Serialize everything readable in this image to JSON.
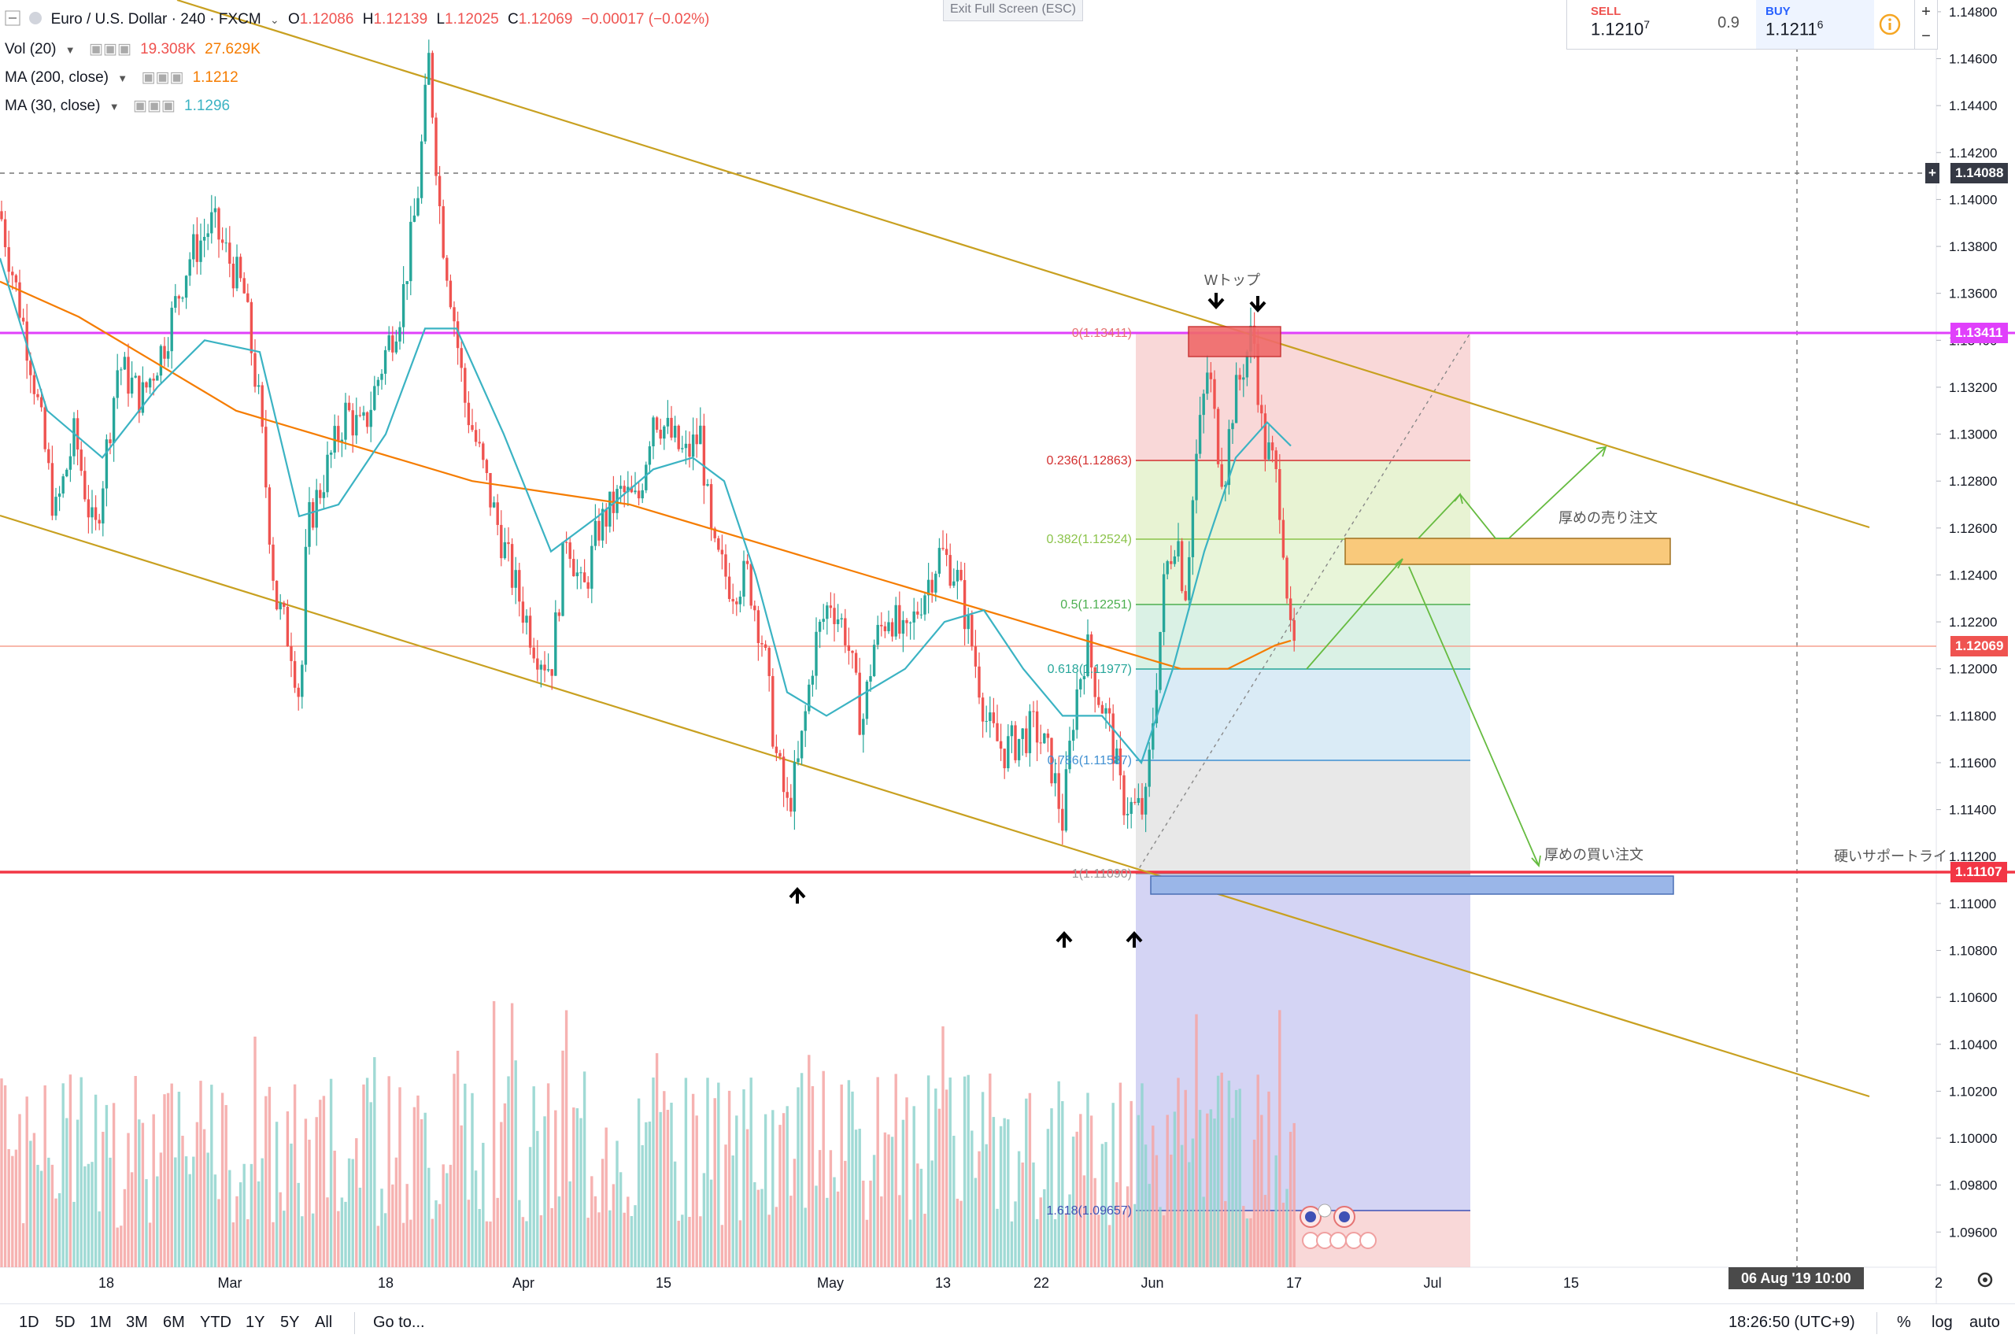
{
  "header": {
    "symbol": "Euro / U.S. Dollar · 240 · FXCM",
    "o_label": "O",
    "o": "1.12086",
    "h_label": "H",
    "h": "1.12139",
    "l_label": "L",
    "l": "1.12025",
    "c_label": "C",
    "c": "1.12069",
    "change": "−0.00017 (−0.02%)",
    "indicators": [
      {
        "name": "Vol (20)",
        "values": [
          "19.308K",
          "27.629K"
        ]
      },
      {
        "name": "MA (200, close)",
        "values": [
          "1.1212"
        ]
      },
      {
        "name": "MA (30, close)",
        "values": [
          "1.1296"
        ]
      }
    ]
  },
  "exit_fullscreen": "Exit Full Screen (ESC)",
  "trade": {
    "sell_label": "SELL",
    "sell_price": "1.1210",
    "sell_pip": "7",
    "spread": "0.9",
    "buy_label": "BUY",
    "buy_price": "1.1211",
    "buy_pip": "6",
    "plus": "+",
    "minus": "−"
  },
  "price_tags": {
    "crosshair": "1.14088",
    "resistance": "1.13411",
    "last": "1.12069",
    "support": "1.11107"
  },
  "annotations": {
    "double_top": "Wトップ",
    "sell_orders": "厚めの売り注文",
    "buy_orders": "厚めの買い注文",
    "support_line": "硬いサポートライ"
  },
  "bottom": {
    "timeframes": [
      "1D",
      "5D",
      "1M",
      "3M",
      "6M",
      "YTD",
      "1Y",
      "5Y",
      "All"
    ],
    "goto": "Go to...",
    "clock": "18:26:50 (UTC+9)",
    "pct": "%",
    "log": "log",
    "auto": "auto"
  },
  "date_badge": "06 Aug '19   10:00",
  "colors": {
    "up": "#26a69a",
    "down": "#ef5350",
    "ma30": "#3bb3c3",
    "ma200": "#f57c00",
    "channel": "#c8a020",
    "resistance": "#e040fb",
    "support": "#f23645",
    "arrow_green": "#66bb40"
  },
  "chart_data": {
    "type": "candlestick",
    "symbol": "EUR/USD",
    "timeframe": "240",
    "ylim": [
      1.0945,
      1.1485
    ],
    "y_ticks": [
      1.148,
      1.146,
      1.144,
      1.142,
      1.14,
      1.138,
      1.136,
      1.134,
      1.132,
      1.13,
      1.128,
      1.126,
      1.124,
      1.122,
      1.12,
      1.118,
      1.116,
      1.114,
      1.112,
      1.11,
      1.108,
      1.106,
      1.104,
      1.102,
      1.1,
      1.098,
      1.096
    ],
    "x_ticks": [
      "18",
      "Mar",
      "18",
      "Apr",
      "15",
      "May",
      "13",
      "22",
      "Jun",
      "17",
      "Jul",
      "15",
      "2"
    ],
    "fib": [
      {
        "ratio": "0",
        "label": "0(1.13411)",
        "value": 1.13411
      },
      {
        "ratio": "0.236",
        "label": "0.236(1.12863)",
        "value": 1.12863
      },
      {
        "ratio": "0.382",
        "label": "0.382(1.12524)",
        "value": 1.12524
      },
      {
        "ratio": "0.5",
        "label": "0.5(1.12251)",
        "value": 1.12251
      },
      {
        "ratio": "0.618",
        "label": "0.618(1.11977)",
        "value": 1.11977
      },
      {
        "ratio": "0.786",
        "label": "0.786(1.11587)",
        "value": 1.11587
      },
      {
        "ratio": "1",
        "label": "1(1.11090)",
        "value": 1.1109
      },
      {
        "ratio": "1.618",
        "label": "1.618(1.09657)",
        "value": 1.09657
      }
    ],
    "price_path": [
      [
        0,
        1.1395
      ],
      [
        40,
        1.133
      ],
      [
        70,
        1.1265
      ],
      [
        95,
        1.13
      ],
      [
        120,
        1.1255
      ],
      [
        150,
        1.133
      ],
      [
        180,
        1.1315
      ],
      [
        210,
        1.134
      ],
      [
        240,
        1.1375
      ],
      [
        270,
        1.139
      ],
      [
        290,
        1.1375
      ],
      [
        310,
        1.136
      ],
      [
        330,
        1.131
      ],
      [
        350,
        1.123
      ],
      [
        370,
        1.121
      ],
      [
        382,
        1.1185
      ],
      [
        390,
        1.126
      ],
      [
        410,
        1.128
      ],
      [
        440,
        1.131
      ],
      [
        460,
        1.13
      ],
      [
        490,
        1.1335
      ],
      [
        510,
        1.1355
      ],
      [
        530,
        1.14
      ],
      [
        545,
        1.146
      ],
      [
        560,
        1.139
      ],
      [
        575,
        1.1355
      ],
      [
        590,
        1.1315
      ],
      [
        610,
        1.129
      ],
      [
        625,
        1.127
      ],
      [
        650,
        1.124
      ],
      [
        680,
        1.121
      ],
      [
        700,
        1.12
      ],
      [
        720,
        1.126
      ],
      [
        740,
        1.123
      ],
      [
        760,
        1.126
      ],
      [
        790,
        1.1275
      ],
      [
        810,
        1.127
      ],
      [
        830,
        1.131
      ],
      [
        850,
        1.13
      ],
      [
        870,
        1.129
      ],
      [
        890,
        1.13
      ],
      [
        905,
        1.125
      ],
      [
        930,
        1.1235
      ],
      [
        950,
        1.124
      ],
      [
        970,
        1.121
      ],
      [
        985,
        1.1165
      ],
      [
        1000,
        1.114
      ],
      [
        1015,
        1.116
      ],
      [
        1035,
        1.121
      ],
      [
        1055,
        1.123
      ],
      [
        1075,
        1.1215
      ],
      [
        1095,
        1.1175
      ],
      [
        1110,
        1.121
      ],
      [
        1130,
        1.1225
      ],
      [
        1150,
        1.121
      ],
      [
        1170,
        1.123
      ],
      [
        1195,
        1.125
      ],
      [
        1215,
        1.124
      ],
      [
        1235,
        1.121
      ],
      [
        1255,
        1.1175
      ],
      [
        1275,
        1.1165
      ],
      [
        1295,
        1.117
      ],
      [
        1315,
        1.1175
      ],
      [
        1335,
        1.116
      ],
      [
        1350,
        1.1135
      ],
      [
        1365,
        1.1185
      ],
      [
        1380,
        1.121
      ],
      [
        1395,
        1.119
      ],
      [
        1410,
        1.1175
      ],
      [
        1425,
        1.1145
      ],
      [
        1440,
        1.114
      ],
      [
        1455,
        1.114
      ],
      [
        1465,
        1.118
      ],
      [
        1480,
        1.124
      ],
      [
        1495,
        1.126
      ],
      [
        1505,
        1.123
      ],
      [
        1520,
        1.129
      ],
      [
        1535,
        1.133
      ],
      [
        1545,
        1.13
      ],
      [
        1555,
        1.128
      ],
      [
        1565,
        1.131
      ],
      [
        1580,
        1.133
      ],
      [
        1592,
        1.1345
      ],
      [
        1605,
        1.1295
      ],
      [
        1615,
        1.129
      ],
      [
        1625,
        1.1275
      ],
      [
        1632,
        1.125
      ],
      [
        1640,
        1.121
      ],
      [
        1645,
        1.1207
      ]
    ],
    "ma30_path": [
      [
        0,
        1.1375
      ],
      [
        60,
        1.131
      ],
      [
        130,
        1.129
      ],
      [
        200,
        1.132
      ],
      [
        260,
        1.134
      ],
      [
        330,
        1.1335
      ],
      [
        380,
        1.1265
      ],
      [
        430,
        1.127
      ],
      [
        490,
        1.13
      ],
      [
        540,
        1.1345
      ],
      [
        580,
        1.1345
      ],
      [
        640,
        1.13
      ],
      [
        700,
        1.125
      ],
      [
        760,
        1.1265
      ],
      [
        830,
        1.1285
      ],
      [
        880,
        1.129
      ],
      [
        920,
        1.128
      ],
      [
        960,
        1.124
      ],
      [
        1000,
        1.119
      ],
      [
        1050,
        1.118
      ],
      [
        1100,
        1.119
      ],
      [
        1150,
        1.12
      ],
      [
        1200,
        1.122
      ],
      [
        1250,
        1.1225
      ],
      [
        1300,
        1.12
      ],
      [
        1350,
        1.118
      ],
      [
        1400,
        1.118
      ],
      [
        1450,
        1.116
      ],
      [
        1490,
        1.12
      ],
      [
        1530,
        1.125
      ],
      [
        1570,
        1.129
      ],
      [
        1610,
        1.1305
      ],
      [
        1640,
        1.1295
      ]
    ],
    "ma200_path": [
      [
        0,
        1.1365
      ],
      [
        100,
        1.135
      ],
      [
        200,
        1.133
      ],
      [
        300,
        1.131
      ],
      [
        400,
        1.13
      ],
      [
        500,
        1.129
      ],
      [
        600,
        1.128
      ],
      [
        700,
        1.1275
      ],
      [
        800,
        1.127
      ],
      [
        900,
        1.126
      ],
      [
        1000,
        1.125
      ],
      [
        1100,
        1.124
      ],
      [
        1200,
        1.123
      ],
      [
        1300,
        1.122
      ],
      [
        1400,
        1.121
      ],
      [
        1500,
        1.12
      ],
      [
        1560,
        1.12
      ],
      [
        1620,
        1.121
      ],
      [
        1640,
        1.1212
      ]
    ],
    "volume_max": "27.629K",
    "levels": {
      "resistance": 1.13411,
      "support": 1.11107,
      "last": 1.12069,
      "crosshair": 1.14088
    }
  }
}
